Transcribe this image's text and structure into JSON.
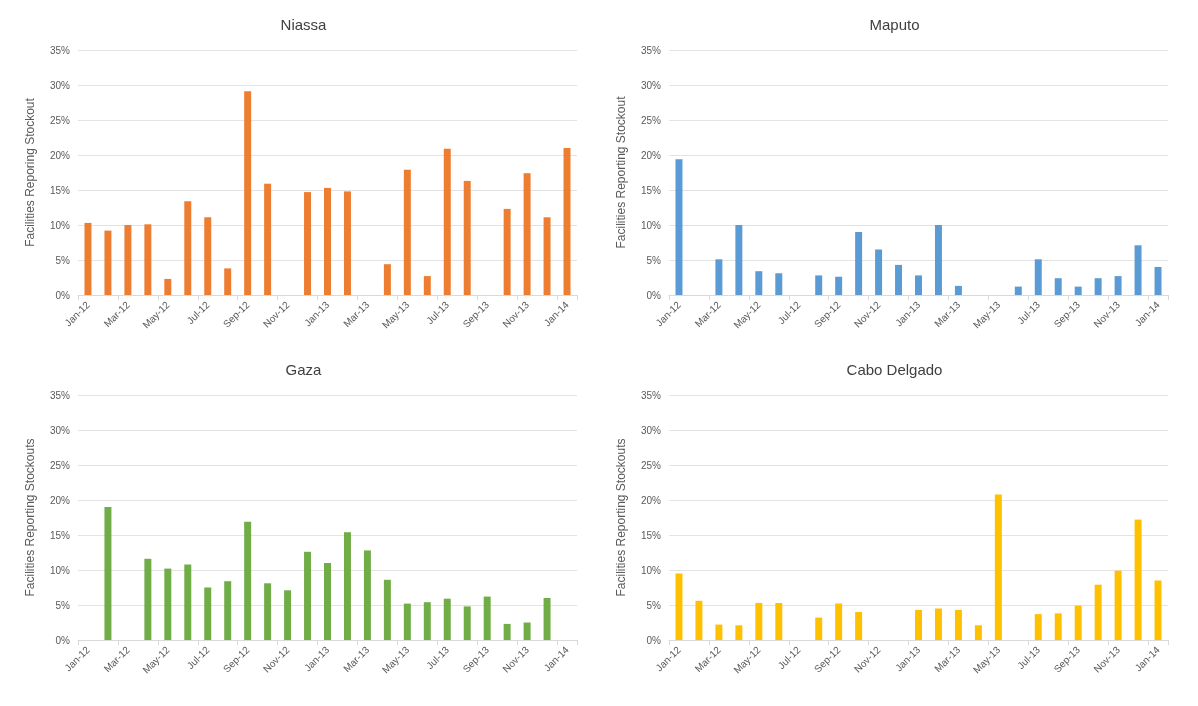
{
  "chart_data": [
    {
      "type": "bar",
      "title": "Niassa",
      "ylabel": "Facilities Reporing Stockout",
      "categories": [
        "Jan-12",
        null,
        "Mar-12",
        null,
        "May-12",
        null,
        "Jul-12",
        null,
        "Sep-12",
        null,
        "Nov-12",
        null,
        "Jan-13",
        null,
        "Mar-13",
        null,
        "May-13",
        null,
        "Jul-13",
        null,
        "Sep-13",
        null,
        "Nov-13",
        null,
        "Jan-14"
      ],
      "values": [
        10.3,
        9.2,
        10.0,
        10.1,
        2.3,
        13.4,
        11.1,
        3.8,
        29.1,
        15.9,
        null,
        14.7,
        15.3,
        14.8,
        null,
        4.4,
        17.9,
        2.7,
        20.9,
        16.3,
        null,
        12.3,
        17.4,
        11.1,
        21.0
      ],
      "color": "#ed7d31",
      "ylim": [
        0,
        35
      ],
      "yticks": [
        {
          "value": 0,
          "label": "0%"
        },
        {
          "value": 5,
          "label": "5%"
        },
        {
          "value": 10,
          "label": "10%"
        },
        {
          "value": 15,
          "label": "15%"
        },
        {
          "value": 20,
          "label": "20%"
        },
        {
          "value": 25,
          "label": "25%"
        },
        {
          "value": 30,
          "label": "30%"
        },
        {
          "value": 35,
          "label": "35%"
        }
      ],
      "grid": "y"
    },
    {
      "type": "bar",
      "title": "Maputo",
      "ylabel": "Facilities Reporting Stockout",
      "categories": [
        "Jan-12",
        null,
        "Mar-12",
        null,
        "May-12",
        null,
        "Jul-12",
        null,
        "Sep-12",
        null,
        "Nov-12",
        null,
        "Jan-13",
        null,
        "Mar-13",
        null,
        "May-13",
        null,
        "Jul-13",
        null,
        "Sep-13",
        null,
        "Nov-13",
        null,
        "Jan-14"
      ],
      "values": [
        19.4,
        null,
        5.1,
        10.0,
        3.4,
        3.1,
        null,
        2.8,
        2.6,
        9.0,
        6.5,
        4.3,
        2.8,
        10.0,
        1.3,
        null,
        null,
        1.2,
        5.1,
        2.4,
        1.2,
        2.4,
        2.7,
        7.1,
        4.0
      ],
      "color": "#5b9bd5",
      "ylim": [
        0,
        35
      ],
      "yticks": [
        {
          "value": 0,
          "label": "0%"
        },
        {
          "value": 5,
          "label": "5%"
        },
        {
          "value": 10,
          "label": "10%"
        },
        {
          "value": 15,
          "label": "15%"
        },
        {
          "value": 20,
          "label": "20%"
        },
        {
          "value": 25,
          "label": "25%"
        },
        {
          "value": 30,
          "label": "30%"
        },
        {
          "value": 35,
          "label": "35%"
        }
      ],
      "grid": "y"
    },
    {
      "type": "bar",
      "title": "Gaza",
      "ylabel": "Facilities Reporting Stockouts",
      "categories": [
        "Jan-12",
        null,
        "Mar-12",
        null,
        "May-12",
        null,
        "Jul-12",
        null,
        "Sep-12",
        null,
        "Nov-12",
        null,
        "Jan-13",
        null,
        "Mar-13",
        null,
        "May-13",
        null,
        "Jul-13",
        null,
        "Sep-13",
        null,
        "Nov-13",
        null,
        "Jan-14"
      ],
      "values": [
        null,
        19.0,
        null,
        11.6,
        10.2,
        10.8,
        7.5,
        8.4,
        16.9,
        8.1,
        7.1,
        12.6,
        11.0,
        15.4,
        12.8,
        8.6,
        5.2,
        5.4,
        5.9,
        4.8,
        6.2,
        2.3,
        2.5,
        6.0,
        null
      ],
      "color": "#70ad47",
      "ylim": [
        0,
        35
      ],
      "yticks": [
        {
          "value": 0,
          "label": "0%"
        },
        {
          "value": 5,
          "label": "5%"
        },
        {
          "value": 10,
          "label": "10%"
        },
        {
          "value": 15,
          "label": "15%"
        },
        {
          "value": 20,
          "label": "20%"
        },
        {
          "value": 25,
          "label": "25%"
        },
        {
          "value": 30,
          "label": "30%"
        },
        {
          "value": 35,
          "label": "35%"
        }
      ],
      "grid": "y"
    },
    {
      "type": "bar",
      "title": "Cabo Delgado",
      "ylabel": "Facilities Reporting Stockouts",
      "categories": [
        "Jan-12",
        null,
        "Mar-12",
        null,
        "May-12",
        null,
        "Jul-12",
        null,
        "Sep-12",
        null,
        "Nov-12",
        null,
        "Jan-13",
        null,
        "Mar-13",
        null,
        "May-13",
        null,
        "Jul-13",
        null,
        "Sep-13",
        null,
        "Nov-13",
        null,
        "Jan-14"
      ],
      "values": [
        9.5,
        5.6,
        2.2,
        2.1,
        5.3,
        5.3,
        null,
        3.2,
        5.2,
        4.0,
        null,
        null,
        4.3,
        4.5,
        4.3,
        2.1,
        20.8,
        null,
        3.7,
        3.8,
        4.9,
        7.9,
        9.9,
        17.2,
        8.5
      ],
      "color": "#ffc000",
      "ylim": [
        0,
        35
      ],
      "yticks": [
        {
          "value": 0,
          "label": "0%"
        },
        {
          "value": 5,
          "label": "5%"
        },
        {
          "value": 10,
          "label": "10%"
        },
        {
          "value": 15,
          "label": "15%"
        },
        {
          "value": 20,
          "label": "20%"
        },
        {
          "value": 25,
          "label": "25%"
        },
        {
          "value": 30,
          "label": "30%"
        },
        {
          "value": 35,
          "label": "35%"
        }
      ],
      "grid": "y"
    }
  ]
}
